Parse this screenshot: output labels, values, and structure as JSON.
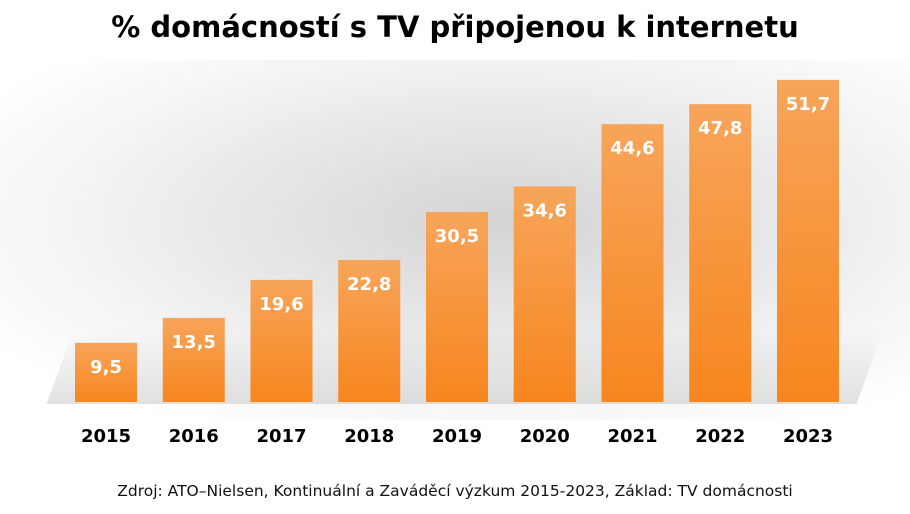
{
  "chart_data": {
    "type": "bar",
    "title": "% domácností s TV připojenou k internetu",
    "categories": [
      "2015",
      "2016",
      "2017",
      "2018",
      "2019",
      "2020",
      "2021",
      "2022",
      "2023"
    ],
    "values": [
      9.5,
      13.5,
      19.6,
      22.8,
      30.5,
      34.6,
      44.6,
      47.8,
      51.7
    ],
    "data_labels": [
      "9,5",
      "13,5",
      "19,6",
      "22,8",
      "30,5",
      "34,6",
      "44,6",
      "47,8",
      "51,7"
    ],
    "xlabel": "",
    "ylabel": "",
    "ylim": [
      0,
      52
    ],
    "grid": false,
    "legend": "none",
    "bar_color": "#f7861e",
    "bar_color_light": "#f7a55b"
  },
  "source_note": "Zdroj: ATO–Nielsen, Kontinuální a Zaváděcí výzkum 2015-2023, Základ: TV domácnosti"
}
